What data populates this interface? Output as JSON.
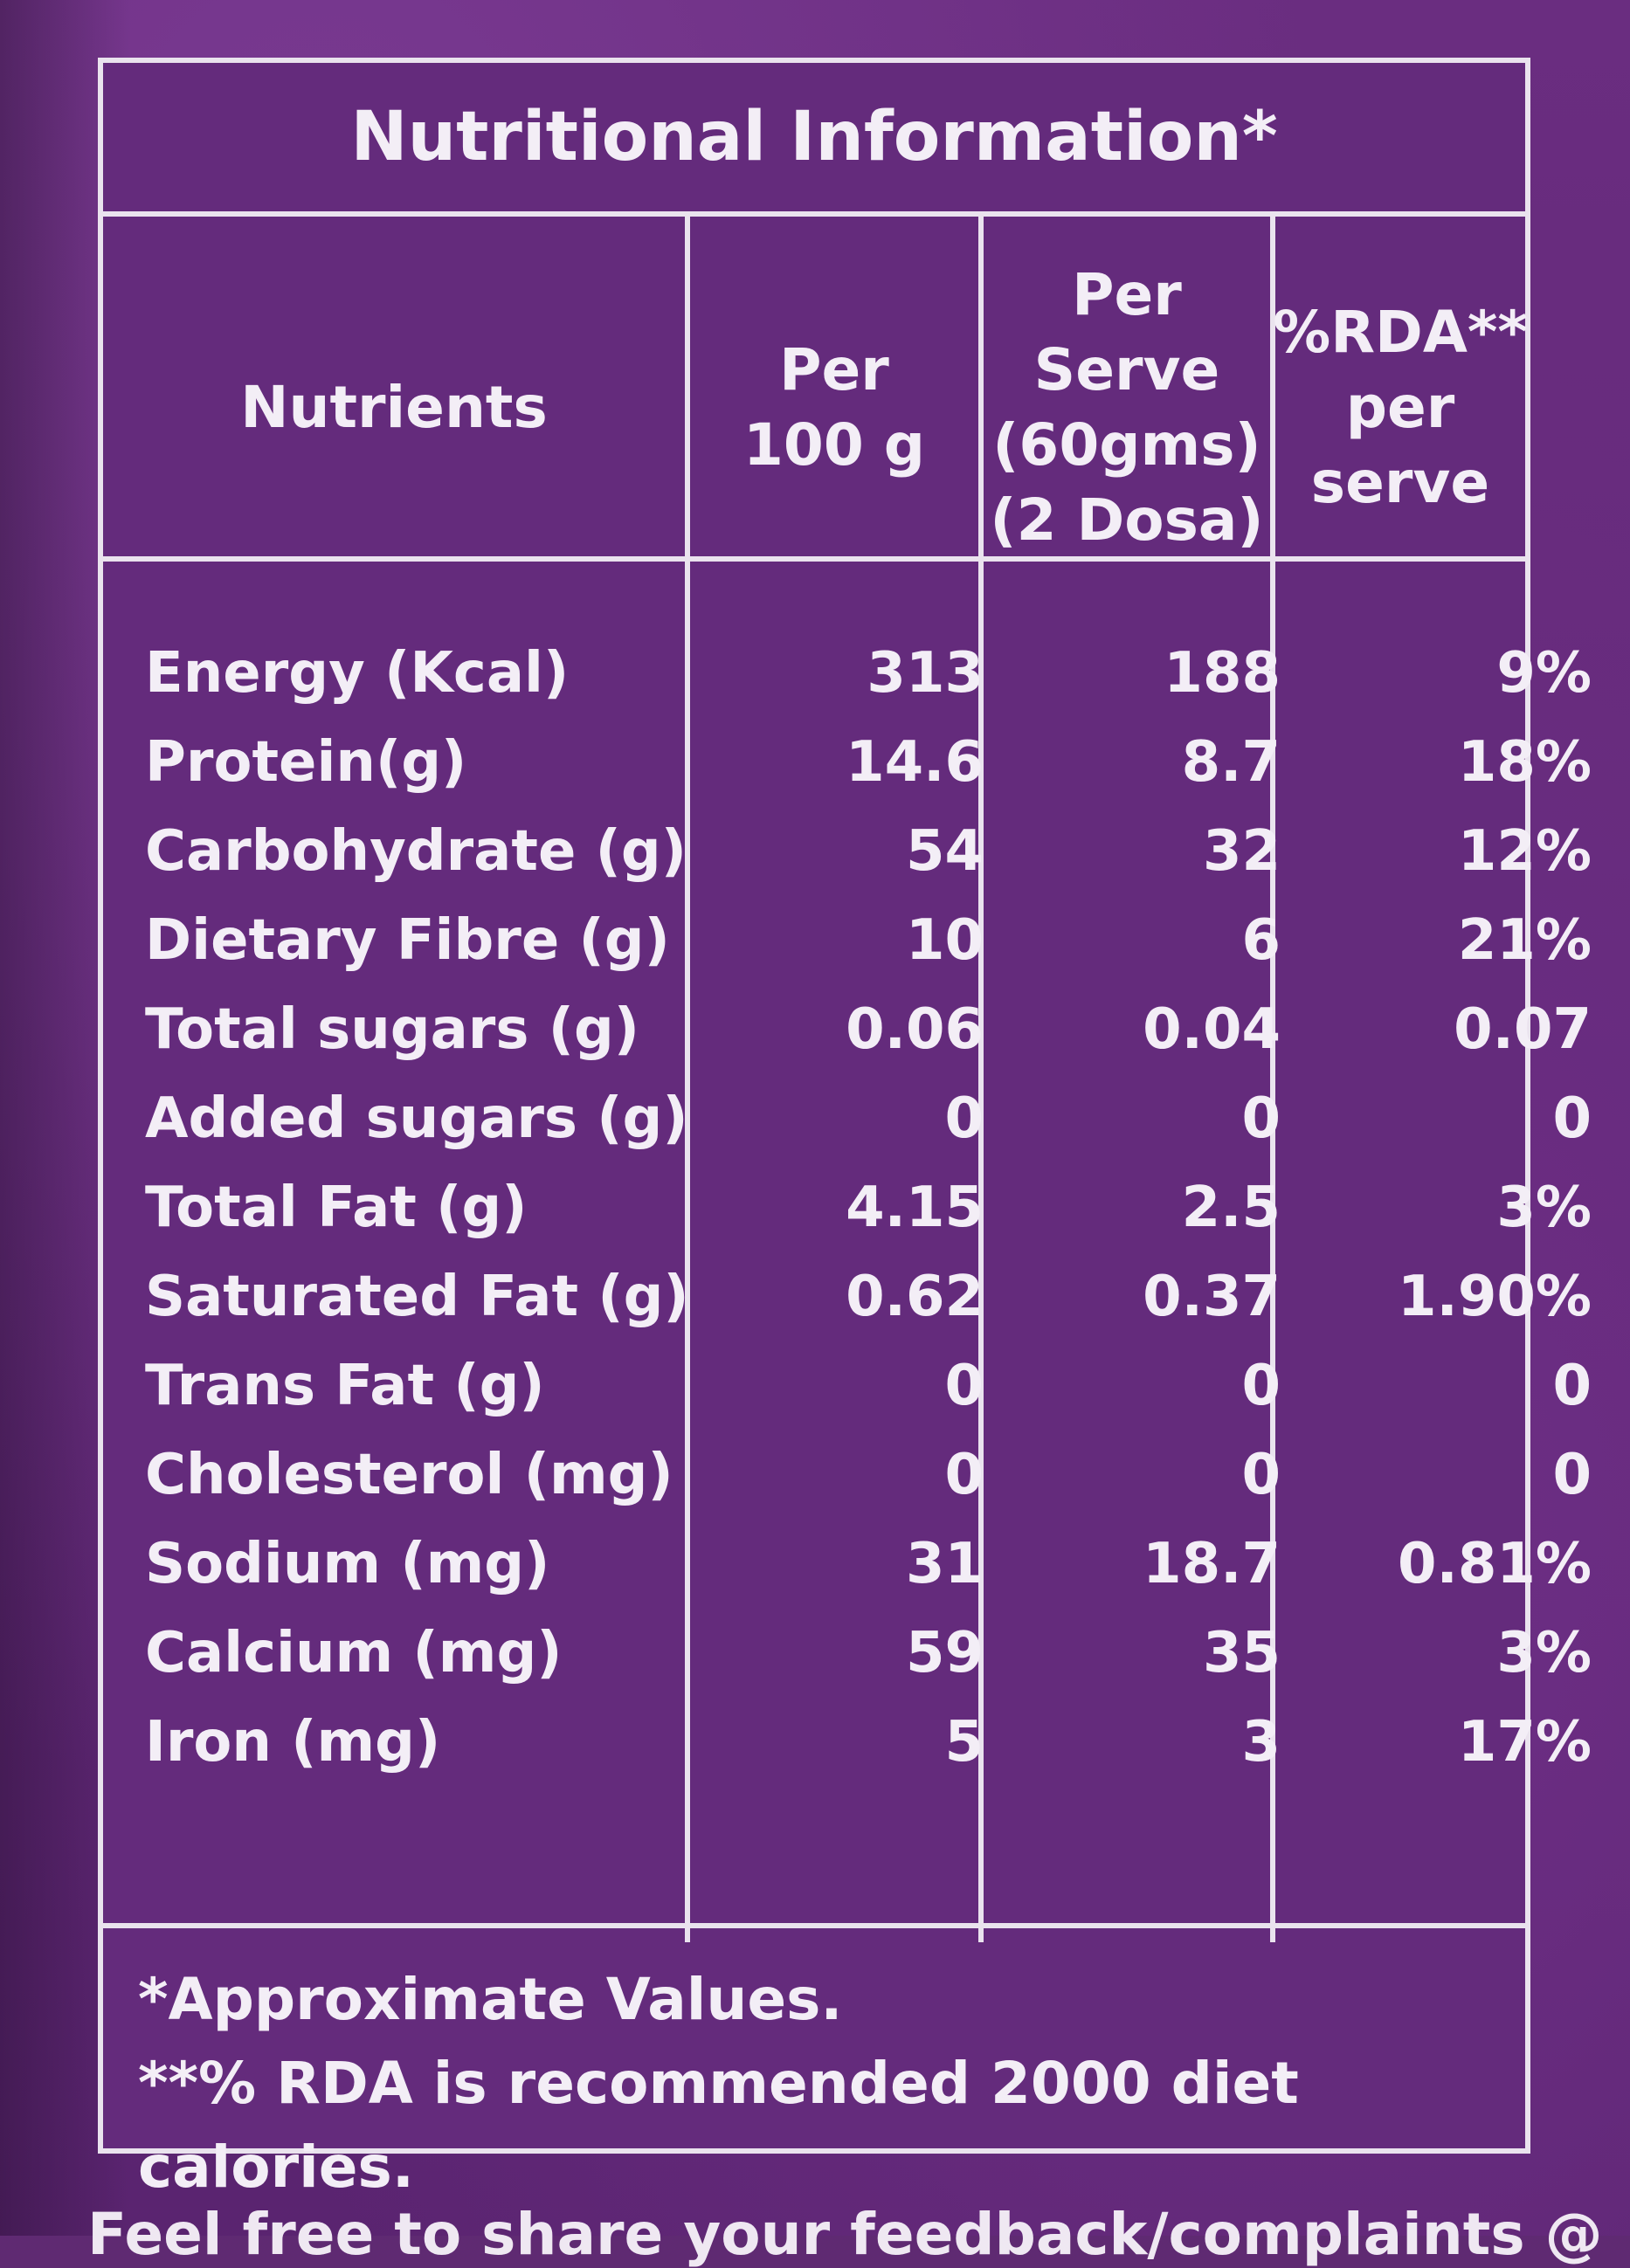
{
  "title": "Nutritional Information*",
  "headers": {
    "nutrients": "Nutrients",
    "per100": [
      "Per",
      "100 g"
    ],
    "perServe": [
      "Per",
      "Serve",
      "(60gms)",
      "(2 Dosa)"
    ],
    "rda": [
      "%RDA**",
      "per",
      "serve"
    ]
  },
  "rows": [
    {
      "name": "Energy (Kcal)",
      "per100": "313",
      "perServe": "188",
      "rda": "9%"
    },
    {
      "name": "Protein(g)",
      "per100": "14.6",
      "perServe": "8.7",
      "rda": "18%"
    },
    {
      "name": "Carbohydrate (g)",
      "per100": "54",
      "perServe": "32",
      "rda": "12%"
    },
    {
      "name": "Dietary Fibre (g)",
      "per100": "10",
      "perServe": "6",
      "rda": "21%"
    },
    {
      "name": "Total sugars (g)",
      "per100": "0.06",
      "perServe": "0.04",
      "rda": "0.07"
    },
    {
      "name": "Added sugars (g)",
      "per100": "0",
      "perServe": "0",
      "rda": "0"
    },
    {
      "name": "Total Fat (g)",
      "per100": "4.15",
      "perServe": "2.5",
      "rda": "3%"
    },
    {
      "name": "Saturated Fat (g)",
      "per100": "0.62",
      "perServe": "0.37",
      "rda": "1.90%"
    },
    {
      "name": "Trans Fat (g)",
      "per100": "0",
      "perServe": "0",
      "rda": "0"
    },
    {
      "name": "Cholesterol (mg)",
      "per100": "0",
      "perServe": "0",
      "rda": "0"
    },
    {
      "name": "Sodium (mg)",
      "per100": "31",
      "perServe": "18.7",
      "rda": "0.81%"
    },
    {
      "name": "Calcium (mg)",
      "per100": "59",
      "perServe": "35",
      "rda": "3%"
    },
    {
      "name": "Iron (mg)",
      "per100": "5",
      "perServe": "3",
      "rda": "17%"
    }
  ],
  "footer": {
    "line1": "*Approximate Values.",
    "line2": "**% RDA is recommended 2000 diet calories."
  },
  "cutText": "Feel free to share your feedback/complaints @"
}
